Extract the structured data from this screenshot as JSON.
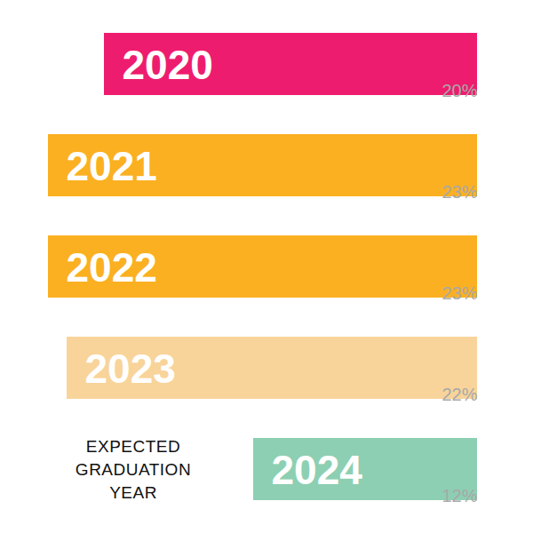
{
  "chart_data": {
    "type": "bar",
    "orientation": "horizontal",
    "categories": [
      "2020",
      "2021",
      "2022",
      "2023",
      "2024"
    ],
    "values": [
      20,
      23,
      23,
      22,
      12
    ],
    "value_labels": [
      "20%",
      "23%",
      "23%",
      "22%",
      "12%"
    ],
    "colors": [
      "#ee1c6e",
      "#fbb021",
      "#fbb021",
      "#f8d49a",
      "#8dcfb2"
    ],
    "data_labels": true,
    "tick_labels": false,
    "xlim": [
      0,
      25
    ],
    "annotations": [
      "EXPECTED GRADUATION YEAR"
    ]
  }
}
